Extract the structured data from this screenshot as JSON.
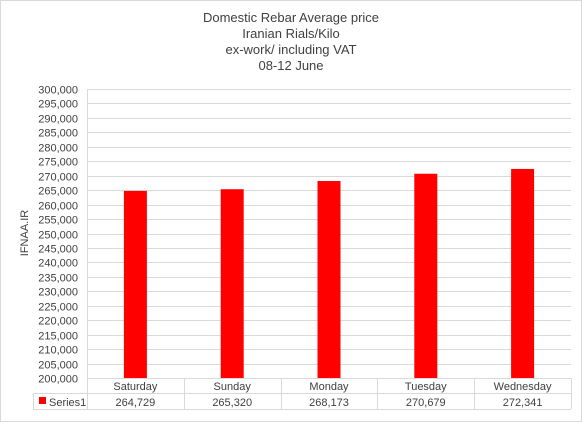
{
  "chart_data": {
    "type": "bar",
    "title_lines": [
      "Domestic Rebar Average  price",
      "Iranian Rials/Kilo",
      "ex-work/ including VAT",
      "08-12 June"
    ],
    "xlabel": "",
    "ylabel": "IFNAA.IR",
    "categories": [
      "Saturday",
      "Sunday",
      "Monday",
      "Tuesday",
      "Wednesday"
    ],
    "series": [
      {
        "name": "Series1",
        "values": [
          264729,
          265320,
          268173,
          270679,
          272341
        ],
        "value_labels": [
          "264,729",
          "265,320",
          "268,173",
          "270,679",
          "272,341"
        ],
        "color": "#ff0000"
      }
    ],
    "ylim": [
      200000,
      300000
    ],
    "y_tick_step": 5000,
    "grid": true,
    "legend": "data-table-left",
    "data_table": true,
    "colors": {
      "bar": "#ff0000",
      "grid": "#d9d9d9",
      "text": "#404040"
    }
  }
}
